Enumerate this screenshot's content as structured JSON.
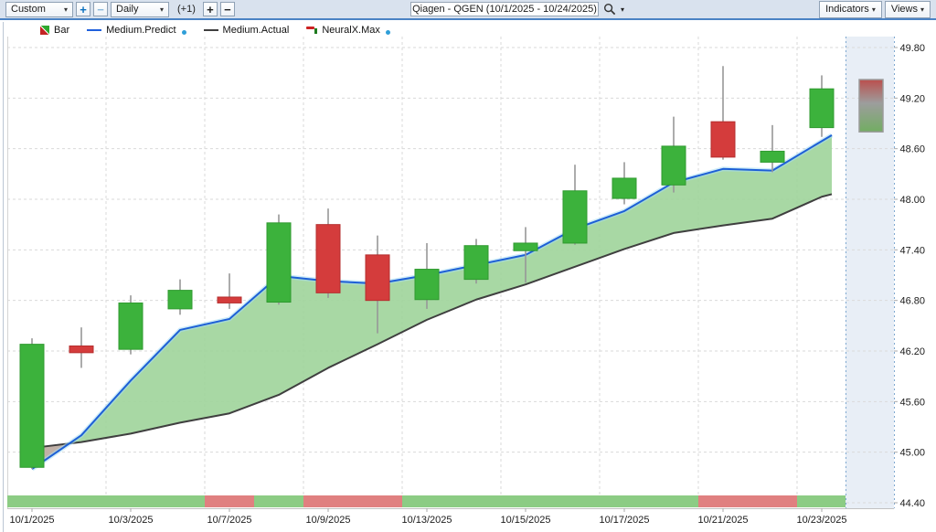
{
  "toolbar": {
    "range_select": "Custom",
    "zoom_in": "+",
    "zoom_out": "−",
    "period_select": "Daily",
    "offset_label": "(+1)",
    "plus": "+",
    "minus": "−",
    "title": "Qiagen - QGEN (10/1/2025 - 10/24/2025)",
    "indicators_button": "Indicators",
    "views_button": "Views",
    "caret": "▾"
  },
  "legend": {
    "items": [
      {
        "label": "Bar"
      },
      {
        "label": "Medium.Predict"
      },
      {
        "label": "Medium.Actual"
      },
      {
        "label": "NeuralX.Max"
      }
    ]
  },
  "colors": {
    "candle_up": "#3cb23c",
    "candle_up_border": "#2f9a2f",
    "candle_down": "#d43c3c",
    "candle_down_border": "#b52e2e",
    "wick": "#979797",
    "predict_line": "#1d5fd6",
    "predict_glow": "#a5dcf2",
    "actual_line": "#3f3f3f",
    "band_fill": "#9fd49a",
    "band_fill_negative": "#baa99e",
    "strip_green": "#8ccc84",
    "strip_red": "#e08080",
    "highlight_fill": "#e4ebf4",
    "highlight_edge": "#7ea8d0",
    "grid": "#dadada",
    "gradient_top": "#bb4f4d",
    "gradient_mid": "#9d9d9d",
    "gradient_bottom": "#72ad62",
    "toolbar_bg": "#d9e2ee",
    "accent_blue": "#4a82c4"
  },
  "chart_data": {
    "type": "candlestick+line",
    "title": "Qiagen - QGEN (10/1/2025 - 10/24/2025)",
    "ylim": [
      44.4,
      49.8
    ],
    "y_ticks": [
      "49.80",
      "49.20",
      "48.60",
      "48.00",
      "47.40",
      "46.80",
      "46.20",
      "45.60",
      "45.00",
      "44.40"
    ],
    "y_tick_values": [
      49.8,
      49.2,
      48.6,
      48.0,
      47.4,
      46.8,
      46.2,
      45.6,
      45.0,
      44.4
    ],
    "x_labels": [
      {
        "label": "10/1/2025",
        "bar": 0
      },
      {
        "label": "10/3/2025",
        "bar": 2
      },
      {
        "label": "10/7/2025",
        "bar": 4
      },
      {
        "label": "10/9/2025",
        "bar": 6
      },
      {
        "label": "10/13/2025",
        "bar": 8
      },
      {
        "label": "10/15/2025",
        "bar": 10
      },
      {
        "label": "10/17/2025",
        "bar": 12
      },
      {
        "label": "10/21/2025",
        "bar": 14
      },
      {
        "label": "10/23/2025",
        "bar": 16
      }
    ],
    "dates": [
      "10/1/2025",
      "10/2/2025",
      "10/3/2025",
      "10/6/2025",
      "10/7/2025",
      "10/8/2025",
      "10/9/2025",
      "10/10/2025",
      "10/13/2025",
      "10/14/2025",
      "10/15/2025",
      "10/16/2025",
      "10/17/2025",
      "10/20/2025",
      "10/21/2025",
      "10/22/2025",
      "10/23/2025",
      "10/24/2025"
    ],
    "candles": [
      {
        "date": "10/1/2025",
        "open": 44.82,
        "high": 46.35,
        "low": 44.8,
        "close": 46.28,
        "dir": "up"
      },
      {
        "date": "10/2/2025",
        "open": 46.26,
        "high": 46.48,
        "low": 46.0,
        "close": 46.18,
        "dir": "down"
      },
      {
        "date": "10/3/2025",
        "open": 46.22,
        "high": 46.86,
        "low": 46.16,
        "close": 46.77,
        "dir": "up"
      },
      {
        "date": "10/6/2025",
        "open": 46.7,
        "high": 47.05,
        "low": 46.63,
        "close": 46.92,
        "dir": "up"
      },
      {
        "date": "10/7/2025",
        "open": 46.84,
        "high": 47.12,
        "low": 46.7,
        "close": 46.77,
        "dir": "down"
      },
      {
        "date": "10/8/2025",
        "open": 46.78,
        "high": 47.82,
        "low": 46.75,
        "close": 47.72,
        "dir": "up"
      },
      {
        "date": "10/9/2025",
        "open": 47.7,
        "high": 47.89,
        "low": 46.83,
        "close": 46.89,
        "dir": "down"
      },
      {
        "date": "10/10/2025",
        "open": 47.34,
        "high": 47.57,
        "low": 46.41,
        "close": 46.8,
        "dir": "down"
      },
      {
        "date": "10/13/2025",
        "open": 46.81,
        "high": 47.48,
        "low": 46.7,
        "close": 47.17,
        "dir": "up"
      },
      {
        "date": "10/14/2025",
        "open": 47.05,
        "high": 47.53,
        "low": 47.0,
        "close": 47.45,
        "dir": "up"
      },
      {
        "date": "10/15/2025",
        "open": 47.39,
        "high": 47.67,
        "low": 47.01,
        "close": 47.48,
        "dir": "up"
      },
      {
        "date": "10/16/2025",
        "open": 47.48,
        "high": 48.41,
        "low": 47.46,
        "close": 48.1,
        "dir": "up"
      },
      {
        "date": "10/17/2025",
        "open": 48.01,
        "high": 48.44,
        "low": 47.94,
        "close": 48.25,
        "dir": "up"
      },
      {
        "date": "10/20/2025",
        "open": 48.17,
        "high": 48.98,
        "low": 48.08,
        "close": 48.63,
        "dir": "up"
      },
      {
        "date": "10/21/2025",
        "open": 48.92,
        "high": 49.58,
        "low": 48.47,
        "close": 48.5,
        "dir": "down"
      },
      {
        "date": "10/22/2025",
        "open": 48.44,
        "high": 48.88,
        "low": 48.32,
        "close": 48.57,
        "dir": "up"
      },
      {
        "date": "10/23/2025",
        "open": 48.85,
        "high": 49.47,
        "low": 48.74,
        "close": 49.31,
        "dir": "up"
      }
    ],
    "series": [
      {
        "name": "Medium.Predict",
        "values": [
          44.8,
          45.2,
          45.85,
          46.45,
          46.58,
          47.09,
          47.03,
          47.0,
          47.1,
          47.22,
          47.34,
          47.65,
          47.86,
          48.2,
          48.36,
          48.34,
          48.69
        ],
        "end_value": 48.76
      },
      {
        "name": "Medium.Actual",
        "values": [
          45.05,
          45.12,
          45.22,
          45.35,
          45.46,
          45.68,
          46.0,
          46.28,
          46.57,
          46.81,
          46.99,
          47.2,
          47.41,
          47.6,
          47.69,
          47.77,
          48.03
        ],
        "end_value": 48.06
      }
    ],
    "neuralx_max": {
      "date": "10/24/2025",
      "top": 49.42,
      "bottom": 48.8
    },
    "signal_strip": [
      "green",
      "green",
      "green",
      "green",
      "red",
      "green",
      "red",
      "red",
      "green",
      "green",
      "green",
      "green",
      "green",
      "green",
      "red",
      "red",
      "green"
    ],
    "grid": true,
    "legend_position": "top-left"
  }
}
